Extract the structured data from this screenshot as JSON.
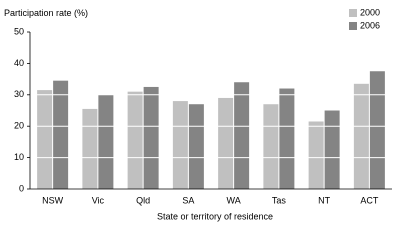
{
  "chart_data": {
    "type": "bar",
    "y_label": "Participation rate (%)",
    "x_label": "State or territory of residence",
    "categories": [
      "NSW",
      "Vic",
      "Qld",
      "SA",
      "WA",
      "Tas",
      "NT",
      "ACT"
    ],
    "series": [
      {
        "name": "2000",
        "color": "#c0c0c0",
        "values": [
          31.5,
          25.5,
          31,
          28,
          29,
          27,
          21.5,
          33.5
        ]
      },
      {
        "name": "2006",
        "color": "#848484",
        "values": [
          34.5,
          30,
          32.5,
          27,
          34,
          32,
          25,
          37.5
        ]
      }
    ],
    "ylim": [
      0,
      50
    ],
    "yticks": [
      0,
      10,
      20,
      30,
      40,
      50
    ],
    "grid": true,
    "legend": "top-right"
  }
}
